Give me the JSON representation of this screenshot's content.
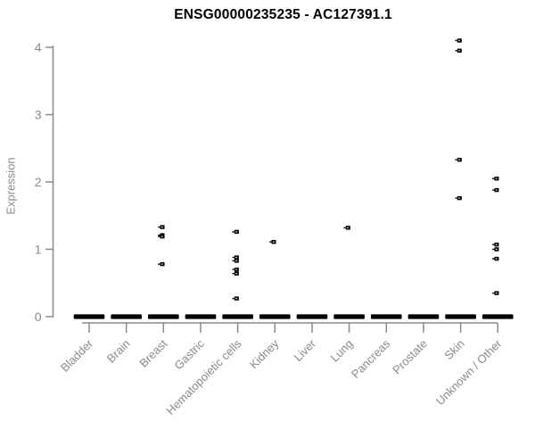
{
  "chart_data": {
    "type": "scatter",
    "title": "ENSG00000235235 - AC127391.1",
    "ylabel": "Expression",
    "xlabel": "",
    "ylim": [
      0,
      4
    ],
    "yticks": [
      "0",
      "1",
      "2",
      "3",
      "4"
    ],
    "grid": false,
    "legend": "none",
    "marker": "small-open-black-square",
    "categories": [
      "Bladder",
      "Brain",
      "Breast",
      "Gastric",
      "Hematopoietic cells",
      "Kidney",
      "Liver",
      "Lung",
      "Pancreas",
      "Prostate",
      "Skin",
      "Unknown / Other"
    ],
    "series": [
      {
        "category": "Bladder",
        "zero_cluster": true,
        "points": []
      },
      {
        "category": "Brain",
        "zero_cluster": true,
        "points": []
      },
      {
        "category": "Breast",
        "zero_cluster": true,
        "points": [
          1.33,
          1.21,
          1.19,
          0.78
        ]
      },
      {
        "category": "Gastric",
        "zero_cluster": true,
        "points": []
      },
      {
        "category": "Hematopoietic cells",
        "zero_cluster": true,
        "points": [
          1.26,
          0.88,
          0.83,
          0.7,
          0.64,
          0.27
        ]
      },
      {
        "category": "Kidney",
        "zero_cluster": true,
        "points": [
          1.11
        ]
      },
      {
        "category": "Liver",
        "zero_cluster": true,
        "points": []
      },
      {
        "category": "Lung",
        "zero_cluster": true,
        "points": [
          1.32
        ]
      },
      {
        "category": "Pancreas",
        "zero_cluster": true,
        "points": []
      },
      {
        "category": "Prostate",
        "zero_cluster": true,
        "points": []
      },
      {
        "category": "Skin",
        "zero_cluster": true,
        "points": [
          4.1,
          3.95,
          2.33,
          1.76
        ]
      },
      {
        "category": "Unknown / Other",
        "zero_cluster": true,
        "points": [
          2.05,
          1.88,
          1.07,
          1.0,
          0.86,
          0.35
        ]
      }
    ],
    "colors": {
      "points": "#000000",
      "zero_bar": "#000000",
      "axis_line": "#8a8a8a",
      "tick_label": "#8a8a8a",
      "category_label": "#8a8a8a",
      "title": "#000000",
      "background": "#ffffff"
    }
  }
}
